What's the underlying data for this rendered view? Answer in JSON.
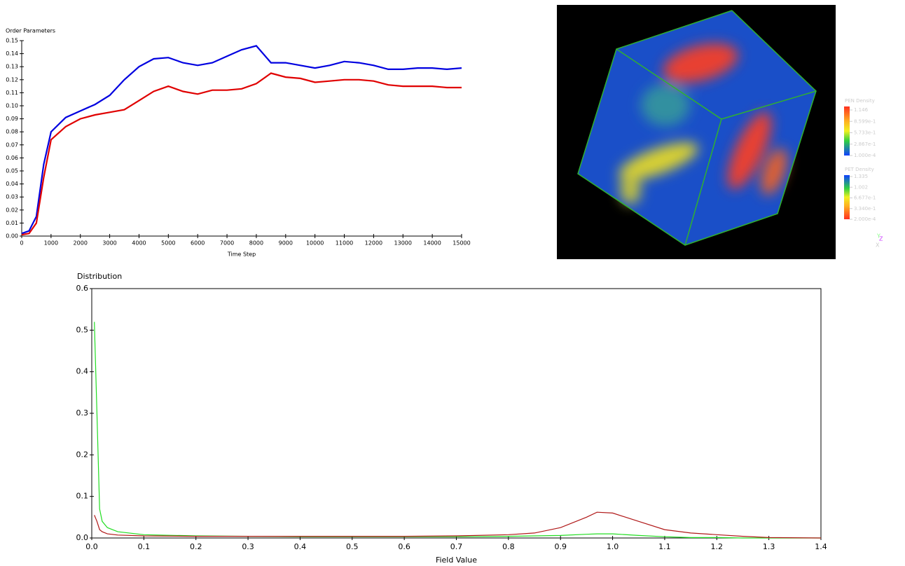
{
  "chart_data": [
    {
      "type": "line",
      "ylabel": "Order Parameters",
      "xlabel": "Time Step",
      "x": [
        0,
        250,
        500,
        750,
        1000,
        1500,
        2000,
        2500,
        3000,
        3500,
        4000,
        4500,
        5000,
        5500,
        6000,
        6500,
        7000,
        7500,
        8000,
        8500,
        9000,
        9500,
        10000,
        10500,
        11000,
        11500,
        12000,
        12500,
        13000,
        13500,
        14000,
        14500,
        15000
      ],
      "series": [
        {
          "color": "#0000e0",
          "values": [
            0.002,
            0.004,
            0.015,
            0.055,
            0.08,
            0.091,
            0.096,
            0.101,
            0.108,
            0.12,
            0.13,
            0.136,
            0.137,
            0.133,
            0.131,
            0.133,
            0.138,
            0.143,
            0.146,
            0.133,
            0.133,
            0.131,
            0.129,
            0.131,
            0.134,
            0.133,
            0.131,
            0.128,
            0.128,
            0.129,
            0.129,
            0.128,
            0.129
          ]
        },
        {
          "color": "#e00000",
          "values": [
            0.001,
            0.002,
            0.01,
            0.045,
            0.074,
            0.084,
            0.09,
            0.093,
            0.095,
            0.097,
            0.104,
            0.111,
            0.115,
            0.111,
            0.109,
            0.112,
            0.112,
            0.113,
            0.117,
            0.125,
            0.122,
            0.121,
            0.118,
            0.119,
            0.12,
            0.12,
            0.119,
            0.116,
            0.115,
            0.115,
            0.115,
            0.114,
            0.114
          ]
        }
      ],
      "xlim": [
        0,
        15000
      ],
      "xticks": [
        0,
        1000,
        2000,
        3000,
        4000,
        5000,
        6000,
        7000,
        8000,
        9000,
        10000,
        11000,
        12000,
        13000,
        14000,
        15000
      ],
      "ylim": [
        0,
        0.15
      ],
      "yticks": [
        {
          "value": 0,
          "label": "0.00"
        },
        0.01,
        0.02,
        0.03,
        0.04,
        0.05,
        0.06,
        0.07,
        0.08,
        0.09,
        {
          "value": 0.1,
          "label": "0.10"
        },
        0.11,
        0.12,
        0.13,
        0.14,
        0.15
      ]
    },
    {
      "type": "line",
      "ylabel": "Distribution",
      "xlabel": "Field Value",
      "x": [
        0.005,
        0.01,
        0.015,
        0.02,
        0.03,
        0.05,
        0.1,
        0.2,
        0.3,
        0.4,
        0.5,
        0.6,
        0.7,
        0.8,
        0.85,
        0.9,
        0.95,
        0.97,
        1.0,
        1.05,
        1.1,
        1.15,
        1.2,
        1.25,
        1.3,
        1.4
      ],
      "series": [
        {
          "color": "#22dd22",
          "values": [
            0.52,
            0.3,
            0.07,
            0.04,
            0.025,
            0.015,
            0.008,
            0.005,
            0.004,
            0.003,
            0.003,
            0.003,
            0.003,
            0.004,
            0.005,
            0.006,
            0.009,
            0.01,
            0.01,
            0.006,
            0.003,
            0.001,
            0.001,
            0,
            0,
            0
          ]
        },
        {
          "color": "#b01818",
          "values": [
            0.055,
            0.04,
            0.02,
            0.015,
            0.01,
            0.007,
            0.005,
            0.004,
            0.004,
            0.004,
            0.004,
            0.004,
            0.005,
            0.008,
            0.012,
            0.025,
            0.05,
            0.062,
            0.06,
            0.04,
            0.02,
            0.012,
            0.008,
            0.004,
            0.001,
            0
          ]
        }
      ],
      "xlim": [
        0,
        1.4
      ],
      "xticks": [
        {
          "value": 0,
          "label": "0.0"
        },
        0.1,
        0.2,
        0.3,
        0.4,
        0.5,
        0.6,
        0.7,
        0.8,
        0.9,
        {
          "value": 1,
          "label": "1.0"
        },
        1.1,
        1.2,
        1.3,
        1.4
      ],
      "ylim": [
        0,
        0.6
      ],
      "yticks": [
        {
          "value": 0,
          "label": "0.0"
        },
        0.1,
        0.2,
        0.3,
        0.4,
        0.5,
        0.6
      ]
    }
  ],
  "render": {
    "legends": [
      {
        "title": "PEN Density",
        "labels": [
          "1.146",
          "8.599e-1",
          "5.733e-1",
          "2.867e-1",
          "1.000e-4"
        ]
      },
      {
        "title": "PET Density",
        "labels": [
          "1.335",
          "1.002",
          "6.677e-1",
          "3.340e-1",
          "2.000e-4"
        ]
      }
    ],
    "axes": [
      "Z",
      "Y",
      "X"
    ]
  }
}
